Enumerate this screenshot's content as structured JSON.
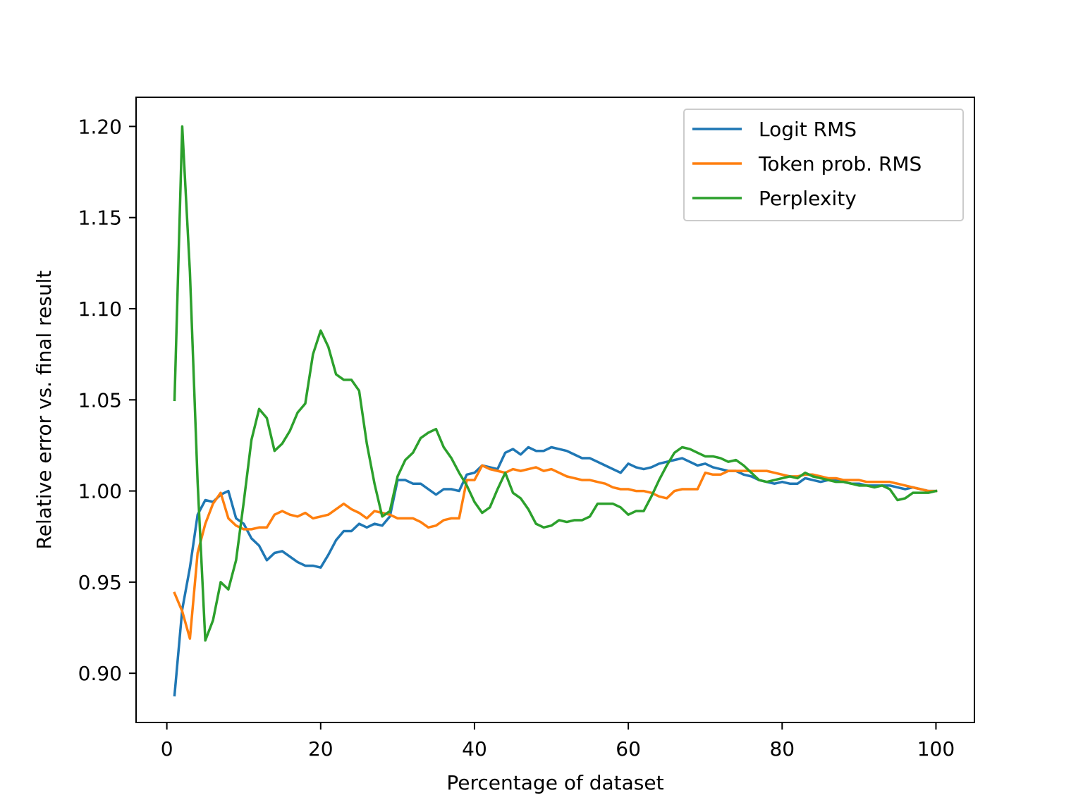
{
  "chart_data": {
    "type": "line",
    "title": "",
    "xlabel": "Percentage of dataset",
    "ylabel": "Relative error vs. final result",
    "xlim": [
      -4,
      105
    ],
    "ylim": [
      0.873,
      1.216
    ],
    "xticks": [
      0,
      20,
      40,
      60,
      80,
      100
    ],
    "xtick_labels": [
      "0",
      "20",
      "40",
      "60",
      "80",
      "100"
    ],
    "yticks": [
      0.9,
      0.95,
      1.0,
      1.05,
      1.1,
      1.15,
      1.2
    ],
    "ytick_labels": [
      "0.90",
      "0.95",
      "1.00",
      "1.05",
      "1.10",
      "1.15",
      "1.20"
    ],
    "grid": false,
    "legend_position": "top-right",
    "series": [
      {
        "name": "Logit RMS",
        "color": "#1f77b4",
        "points": [
          [
            1,
            0.888
          ],
          [
            2,
            0.935
          ],
          [
            3,
            0.958
          ],
          [
            4,
            0.987
          ],
          [
            5,
            0.995
          ],
          [
            6,
            0.994
          ],
          [
            7,
            0.998
          ],
          [
            8,
            1.0
          ],
          [
            9,
            0.985
          ],
          [
            10,
            0.982
          ],
          [
            11,
            0.974
          ],
          [
            12,
            0.97
          ],
          [
            13,
            0.962
          ],
          [
            14,
            0.966
          ],
          [
            15,
            0.967
          ],
          [
            16,
            0.964
          ],
          [
            17,
            0.961
          ],
          [
            18,
            0.959
          ],
          [
            19,
            0.959
          ],
          [
            20,
            0.958
          ],
          [
            21,
            0.965
          ],
          [
            22,
            0.973
          ],
          [
            23,
            0.978
          ],
          [
            24,
            0.978
          ],
          [
            25,
            0.982
          ],
          [
            26,
            0.98
          ],
          [
            27,
            0.982
          ],
          [
            28,
            0.981
          ],
          [
            29,
            0.986
          ],
          [
            30,
            1.006
          ],
          [
            31,
            1.006
          ],
          [
            32,
            1.004
          ],
          [
            33,
            1.004
          ],
          [
            34,
            1.001
          ],
          [
            35,
            0.998
          ],
          [
            36,
            1.001
          ],
          [
            37,
            1.001
          ],
          [
            38,
            1.0
          ],
          [
            39,
            1.009
          ],
          [
            40,
            1.01
          ],
          [
            41,
            1.014
          ],
          [
            42,
            1.013
          ],
          [
            43,
            1.012
          ],
          [
            44,
            1.021
          ],
          [
            45,
            1.023
          ],
          [
            46,
            1.02
          ],
          [
            47,
            1.024
          ],
          [
            48,
            1.022
          ],
          [
            49,
            1.022
          ],
          [
            50,
            1.024
          ],
          [
            51,
            1.023
          ],
          [
            52,
            1.022
          ],
          [
            53,
            1.02
          ],
          [
            54,
            1.018
          ],
          [
            55,
            1.018
          ],
          [
            56,
            1.016
          ],
          [
            57,
            1.014
          ],
          [
            58,
            1.012
          ],
          [
            59,
            1.01
          ],
          [
            60,
            1.015
          ],
          [
            61,
            1.013
          ],
          [
            62,
            1.012
          ],
          [
            63,
            1.013
          ],
          [
            64,
            1.015
          ],
          [
            65,
            1.016
          ],
          [
            66,
            1.017
          ],
          [
            67,
            1.018
          ],
          [
            68,
            1.016
          ],
          [
            69,
            1.014
          ],
          [
            70,
            1.015
          ],
          [
            71,
            1.013
          ],
          [
            72,
            1.012
          ],
          [
            73,
            1.011
          ],
          [
            74,
            1.011
          ],
          [
            75,
            1.009
          ],
          [
            76,
            1.008
          ],
          [
            77,
            1.006
          ],
          [
            78,
            1.005
          ],
          [
            79,
            1.004
          ],
          [
            80,
            1.005
          ],
          [
            81,
            1.004
          ],
          [
            82,
            1.004
          ],
          [
            83,
            1.007
          ],
          [
            84,
            1.006
          ],
          [
            85,
            1.005
          ],
          [
            86,
            1.006
          ],
          [
            87,
            1.006
          ],
          [
            88,
            1.005
          ],
          [
            89,
            1.004
          ],
          [
            90,
            1.004
          ],
          [
            91,
            1.003
          ],
          [
            92,
            1.003
          ],
          [
            93,
            1.003
          ],
          [
            94,
            1.003
          ],
          [
            95,
            1.002
          ],
          [
            96,
            1.001
          ],
          [
            97,
            1.002
          ],
          [
            98,
            1.001
          ],
          [
            99,
            1.0
          ],
          [
            100,
            1.0
          ]
        ]
      },
      {
        "name": "Token prob. RMS",
        "color": "#ff7f0e",
        "points": [
          [
            1,
            0.944
          ],
          [
            2,
            0.934
          ],
          [
            3,
            0.919
          ],
          [
            4,
            0.966
          ],
          [
            5,
            0.982
          ],
          [
            6,
            0.993
          ],
          [
            7,
            0.999
          ],
          [
            8,
            0.985
          ],
          [
            9,
            0.981
          ],
          [
            10,
            0.979
          ],
          [
            11,
            0.979
          ],
          [
            12,
            0.98
          ],
          [
            13,
            0.98
          ],
          [
            14,
            0.987
          ],
          [
            15,
            0.989
          ],
          [
            16,
            0.987
          ],
          [
            17,
            0.986
          ],
          [
            18,
            0.988
          ],
          [
            19,
            0.985
          ],
          [
            20,
            0.986
          ],
          [
            21,
            0.987
          ],
          [
            22,
            0.99
          ],
          [
            23,
            0.993
          ],
          [
            24,
            0.99
          ],
          [
            25,
            0.988
          ],
          [
            26,
            0.985
          ],
          [
            27,
            0.989
          ],
          [
            28,
            0.988
          ],
          [
            29,
            0.987
          ],
          [
            30,
            0.985
          ],
          [
            31,
            0.985
          ],
          [
            32,
            0.985
          ],
          [
            33,
            0.983
          ],
          [
            34,
            0.98
          ],
          [
            35,
            0.981
          ],
          [
            36,
            0.984
          ],
          [
            37,
            0.985
          ],
          [
            38,
            0.985
          ],
          [
            39,
            1.006
          ],
          [
            40,
            1.006
          ],
          [
            41,
            1.014
          ],
          [
            42,
            1.012
          ],
          [
            43,
            1.011
          ],
          [
            44,
            1.01
          ],
          [
            45,
            1.012
          ],
          [
            46,
            1.011
          ],
          [
            47,
            1.012
          ],
          [
            48,
            1.013
          ],
          [
            49,
            1.011
          ],
          [
            50,
            1.012
          ],
          [
            51,
            1.01
          ],
          [
            52,
            1.008
          ],
          [
            53,
            1.007
          ],
          [
            54,
            1.006
          ],
          [
            55,
            1.006
          ],
          [
            56,
            1.005
          ],
          [
            57,
            1.004
          ],
          [
            58,
            1.002
          ],
          [
            59,
            1.001
          ],
          [
            60,
            1.001
          ],
          [
            61,
            1.0
          ],
          [
            62,
            1.0
          ],
          [
            63,
            0.999
          ],
          [
            64,
            0.997
          ],
          [
            65,
            0.996
          ],
          [
            66,
            1.0
          ],
          [
            67,
            1.001
          ],
          [
            68,
            1.001
          ],
          [
            69,
            1.001
          ],
          [
            70,
            1.01
          ],
          [
            71,
            1.009
          ],
          [
            72,
            1.009
          ],
          [
            73,
            1.011
          ],
          [
            74,
            1.011
          ],
          [
            75,
            1.011
          ],
          [
            76,
            1.011
          ],
          [
            77,
            1.011
          ],
          [
            78,
            1.011
          ],
          [
            79,
            1.01
          ],
          [
            80,
            1.009
          ],
          [
            81,
            1.008
          ],
          [
            82,
            1.008
          ],
          [
            83,
            1.009
          ],
          [
            84,
            1.009
          ],
          [
            85,
            1.008
          ],
          [
            86,
            1.007
          ],
          [
            87,
            1.007
          ],
          [
            88,
            1.006
          ],
          [
            89,
            1.006
          ],
          [
            90,
            1.006
          ],
          [
            91,
            1.005
          ],
          [
            92,
            1.005
          ],
          [
            93,
            1.005
          ],
          [
            94,
            1.005
          ],
          [
            95,
            1.004
          ],
          [
            96,
            1.003
          ],
          [
            97,
            1.002
          ],
          [
            98,
            1.001
          ],
          [
            99,
            1.0
          ],
          [
            100,
            1.0
          ]
        ]
      },
      {
        "name": "Perplexity",
        "color": "#2ca02c",
        "points": [
          [
            1,
            1.05
          ],
          [
            2,
            1.2
          ],
          [
            3,
            1.12
          ],
          [
            4,
            1.005
          ],
          [
            5,
            0.918
          ],
          [
            6,
            0.929
          ],
          [
            7,
            0.95
          ],
          [
            8,
            0.946
          ],
          [
            9,
            0.962
          ],
          [
            10,
            0.994
          ],
          [
            11,
            1.028
          ],
          [
            12,
            1.045
          ],
          [
            13,
            1.04
          ],
          [
            14,
            1.022
          ],
          [
            15,
            1.026
          ],
          [
            16,
            1.033
          ],
          [
            17,
            1.043
          ],
          [
            18,
            1.048
          ],
          [
            19,
            1.075
          ],
          [
            20,
            1.088
          ],
          [
            21,
            1.079
          ],
          [
            22,
            1.064
          ],
          [
            23,
            1.061
          ],
          [
            24,
            1.061
          ],
          [
            25,
            1.055
          ],
          [
            26,
            1.026
          ],
          [
            27,
            1.004
          ],
          [
            28,
            0.986
          ],
          [
            29,
            0.989
          ],
          [
            30,
            1.008
          ],
          [
            31,
            1.017
          ],
          [
            32,
            1.021
          ],
          [
            33,
            1.029
          ],
          [
            34,
            1.032
          ],
          [
            35,
            1.034
          ],
          [
            36,
            1.024
          ],
          [
            37,
            1.018
          ],
          [
            38,
            1.01
          ],
          [
            39,
            1.003
          ],
          [
            40,
            0.994
          ],
          [
            41,
            0.988
          ],
          [
            42,
            0.991
          ],
          [
            43,
            1.001
          ],
          [
            44,
            1.01
          ],
          [
            45,
            0.999
          ],
          [
            46,
            0.996
          ],
          [
            47,
            0.99
          ],
          [
            48,
            0.982
          ],
          [
            49,
            0.98
          ],
          [
            50,
            0.981
          ],
          [
            51,
            0.984
          ],
          [
            52,
            0.983
          ],
          [
            53,
            0.984
          ],
          [
            54,
            0.984
          ],
          [
            55,
            0.986
          ],
          [
            56,
            0.993
          ],
          [
            57,
            0.993
          ],
          [
            58,
            0.993
          ],
          [
            59,
            0.991
          ],
          [
            60,
            0.987
          ],
          [
            61,
            0.989
          ],
          [
            62,
            0.989
          ],
          [
            63,
            0.997
          ],
          [
            64,
            1.006
          ],
          [
            65,
            1.014
          ],
          [
            66,
            1.021
          ],
          [
            67,
            1.024
          ],
          [
            68,
            1.023
          ],
          [
            69,
            1.021
          ],
          [
            70,
            1.019
          ],
          [
            71,
            1.019
          ],
          [
            72,
            1.018
          ],
          [
            73,
            1.016
          ],
          [
            74,
            1.017
          ],
          [
            75,
            1.014
          ],
          [
            76,
            1.01
          ],
          [
            77,
            1.006
          ],
          [
            78,
            1.005
          ],
          [
            79,
            1.006
          ],
          [
            80,
            1.007
          ],
          [
            81,
            1.008
          ],
          [
            82,
            1.007
          ],
          [
            83,
            1.01
          ],
          [
            84,
            1.008
          ],
          [
            85,
            1.007
          ],
          [
            86,
            1.006
          ],
          [
            87,
            1.005
          ],
          [
            88,
            1.005
          ],
          [
            89,
            1.004
          ],
          [
            90,
            1.003
          ],
          [
            91,
            1.003
          ],
          [
            92,
            1.002
          ],
          [
            93,
            1.003
          ],
          [
            94,
            1.001
          ],
          [
            95,
            0.995
          ],
          [
            96,
            0.996
          ],
          [
            97,
            0.999
          ],
          [
            98,
            0.999
          ],
          [
            99,
            0.999
          ],
          [
            100,
            1.0
          ]
        ]
      }
    ]
  }
}
